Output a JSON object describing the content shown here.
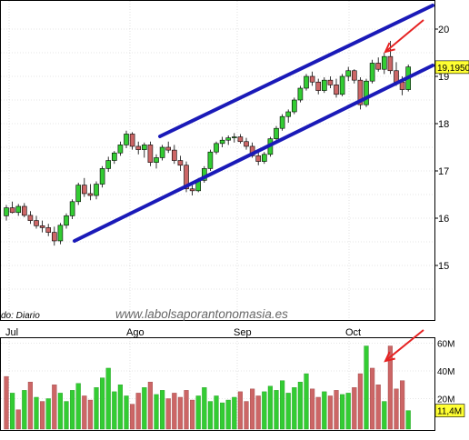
{
  "chart_data": [
    {
      "type": "candlestick",
      "period_label": "do: Diario",
      "watermark": "www.labolsaporantonomasia.es",
      "x_tick_labels": [
        "Jul",
        "Ago",
        "Sep",
        "Oct"
      ],
      "y_tick_labels": [
        "15",
        "16",
        "17",
        "18",
        "19",
        "20"
      ],
      "ylim": [
        14.1,
        20.55
      ],
      "last_price_label": "19,1950",
      "last_price": 19.195,
      "candles": [
        [
          16.05,
          16.28,
          15.95,
          16.22
        ],
        [
          16.22,
          16.35,
          16.1,
          16.12
        ],
        [
          16.12,
          16.3,
          16.05,
          16.25
        ],
        [
          16.25,
          16.32,
          16.02,
          16.06
        ],
        [
          16.06,
          16.15,
          15.88,
          15.95
        ],
        [
          15.95,
          16.05,
          15.78,
          15.84
        ],
        [
          15.84,
          15.95,
          15.7,
          15.8
        ],
        [
          15.8,
          15.88,
          15.62,
          15.7
        ],
        [
          15.7,
          15.82,
          15.42,
          15.52
        ],
        [
          15.52,
          15.9,
          15.45,
          15.85
        ],
        [
          15.85,
          16.1,
          15.78,
          16.05
        ],
        [
          16.05,
          16.4,
          15.98,
          16.35
        ],
        [
          16.35,
          16.75,
          16.28,
          16.7
        ],
        [
          16.7,
          16.85,
          16.45,
          16.52
        ],
        [
          16.52,
          16.72,
          16.38,
          16.48
        ],
        [
          16.48,
          16.78,
          16.4,
          16.72
        ],
        [
          16.72,
          17.1,
          16.65,
          17.05
        ],
        [
          17.05,
          17.3,
          16.98,
          17.22
        ],
        [
          17.22,
          17.42,
          17.15,
          17.38
        ],
        [
          17.38,
          17.62,
          17.32,
          17.55
        ],
        [
          17.55,
          17.85,
          17.48,
          17.78
        ],
        [
          17.78,
          17.82,
          17.45,
          17.52
        ],
        [
          17.52,
          17.62,
          17.35,
          17.45
        ],
        [
          17.45,
          17.6,
          17.28,
          17.55
        ],
        [
          17.55,
          17.62,
          17.1,
          17.18
        ],
        [
          17.18,
          17.35,
          17.05,
          17.28
        ],
        [
          17.28,
          17.55,
          17.22,
          17.5
        ],
        [
          17.5,
          17.62,
          17.38,
          17.44
        ],
        [
          17.44,
          17.55,
          17.15,
          17.22
        ],
        [
          17.22,
          17.32,
          17.0,
          17.12
        ],
        [
          17.12,
          17.2,
          16.55,
          16.62
        ],
        [
          16.62,
          16.7,
          16.48,
          16.58
        ],
        [
          16.58,
          16.85,
          16.55,
          16.8
        ],
        [
          16.8,
          17.1,
          16.75,
          17.05
        ],
        [
          17.05,
          17.45,
          17.0,
          17.4
        ],
        [
          17.4,
          17.62,
          17.35,
          17.58
        ],
        [
          17.58,
          17.72,
          17.5,
          17.65
        ],
        [
          17.65,
          17.75,
          17.55,
          17.7
        ],
        [
          17.7,
          17.8,
          17.6,
          17.72
        ],
        [
          17.72,
          17.78,
          17.58,
          17.62
        ],
        [
          17.62,
          17.7,
          17.45,
          17.52
        ],
        [
          17.52,
          17.6,
          17.28,
          17.32
        ],
        [
          17.32,
          17.4,
          17.12,
          17.2
        ],
        [
          17.2,
          17.4,
          17.15,
          17.35
        ],
        [
          17.35,
          17.72,
          17.3,
          17.68
        ],
        [
          17.68,
          17.95,
          17.62,
          17.9
        ],
        [
          17.9,
          18.2,
          17.85,
          18.15
        ],
        [
          18.15,
          18.3,
          18.02,
          18.25
        ],
        [
          18.25,
          18.55,
          18.2,
          18.5
        ],
        [
          18.5,
          18.8,
          18.45,
          18.75
        ],
        [
          18.75,
          19.05,
          18.7,
          19.0
        ],
        [
          19.0,
          19.1,
          18.8,
          18.88
        ],
        [
          18.88,
          18.95,
          18.62,
          18.7
        ],
        [
          18.7,
          18.98,
          18.65,
          18.92
        ],
        [
          18.92,
          19.0,
          18.75,
          18.82
        ],
        [
          18.82,
          18.95,
          18.55,
          18.62
        ],
        [
          18.62,
          19.05,
          18.58,
          19.0
        ],
        [
          19.0,
          19.2,
          18.9,
          19.12
        ],
        [
          19.12,
          19.15,
          18.85,
          18.92
        ],
        [
          18.92,
          18.98,
          18.3,
          18.4
        ],
        [
          18.4,
          18.95,
          18.35,
          18.9
        ],
        [
          18.9,
          19.35,
          18.85,
          19.28
        ],
        [
          19.28,
          19.4,
          19.1,
          19.15
        ],
        [
          19.15,
          19.5,
          19.05,
          19.42
        ],
        [
          19.42,
          19.75,
          19.05,
          19.12
        ],
        [
          19.12,
          19.3,
          18.8,
          18.88
        ],
        [
          18.88,
          19.0,
          18.6,
          18.72
        ],
        [
          18.72,
          19.25,
          18.68,
          19.2
        ]
      ],
      "volume_axis_labels": [
        "60M",
        "40M",
        "20M"
      ],
      "volume_last_label": "11,4M",
      "volume_max": 64,
      "volume": [
        {
          "v": 36,
          "dir": "dn"
        },
        {
          "v": 24,
          "dir": "up"
        },
        {
          "v": 12,
          "dir": "dn"
        },
        {
          "v": 26,
          "dir": "up"
        },
        {
          "v": 32,
          "dir": "dn"
        },
        {
          "v": 21,
          "dir": "up"
        },
        {
          "v": 18,
          "dir": "dn"
        },
        {
          "v": 20,
          "dir": "up"
        },
        {
          "v": 30,
          "dir": "dn"
        },
        {
          "v": 24,
          "dir": "up"
        },
        {
          "v": 18,
          "dir": "up"
        },
        {
          "v": 26,
          "dir": "up"
        },
        {
          "v": 31,
          "dir": "up"
        },
        {
          "v": 22,
          "dir": "dn"
        },
        {
          "v": 19,
          "dir": "dn"
        },
        {
          "v": 28,
          "dir": "up"
        },
        {
          "v": 35,
          "dir": "up"
        },
        {
          "v": 42,
          "dir": "up"
        },
        {
          "v": 25,
          "dir": "up"
        },
        {
          "v": 30,
          "dir": "up"
        },
        {
          "v": 22,
          "dir": "up"
        },
        {
          "v": 16,
          "dir": "dn"
        },
        {
          "v": 24,
          "dir": "dn"
        },
        {
          "v": 28,
          "dir": "up"
        },
        {
          "v": 32,
          "dir": "dn"
        },
        {
          "v": 23,
          "dir": "up"
        },
        {
          "v": 26,
          "dir": "up"
        },
        {
          "v": 20,
          "dir": "dn"
        },
        {
          "v": 24,
          "dir": "dn"
        },
        {
          "v": 21,
          "dir": "dn"
        },
        {
          "v": 26,
          "dir": "dn"
        },
        {
          "v": 19,
          "dir": "dn"
        },
        {
          "v": 22,
          "dir": "up"
        },
        {
          "v": 28,
          "dir": "up"
        },
        {
          "v": 18,
          "dir": "up"
        },
        {
          "v": 22,
          "dir": "up"
        },
        {
          "v": 17,
          "dir": "up"
        },
        {
          "v": 19,
          "dir": "up"
        },
        {
          "v": 21,
          "dir": "up"
        },
        {
          "v": 25,
          "dir": "dn"
        },
        {
          "v": 18,
          "dir": "dn"
        },
        {
          "v": 27,
          "dir": "dn"
        },
        {
          "v": 22,
          "dir": "dn"
        },
        {
          "v": 25,
          "dir": "up"
        },
        {
          "v": 29,
          "dir": "up"
        },
        {
          "v": 26,
          "dir": "up"
        },
        {
          "v": 33,
          "dir": "up"
        },
        {
          "v": 24,
          "dir": "up"
        },
        {
          "v": 28,
          "dir": "up"
        },
        {
          "v": 32,
          "dir": "up"
        },
        {
          "v": 38,
          "dir": "up"
        },
        {
          "v": 27,
          "dir": "dn"
        },
        {
          "v": 21,
          "dir": "dn"
        },
        {
          "v": 25,
          "dir": "up"
        },
        {
          "v": 22,
          "dir": "dn"
        },
        {
          "v": 26,
          "dir": "dn"
        },
        {
          "v": 23,
          "dir": "up"
        },
        {
          "v": 24,
          "dir": "up"
        },
        {
          "v": 28,
          "dir": "dn"
        },
        {
          "v": 38,
          "dir": "dn"
        },
        {
          "v": 58,
          "dir": "up"
        },
        {
          "v": 42,
          "dir": "dn"
        },
        {
          "v": 30,
          "dir": "dn"
        },
        {
          "v": 18,
          "dir": "up"
        },
        {
          "v": 58,
          "dir": "dn"
        },
        {
          "v": 27,
          "dir": "dn"
        },
        {
          "v": 33,
          "dir": "dn"
        },
        {
          "v": 11.4,
          "dir": "up"
        }
      ]
    }
  ],
  "colors": {
    "up": "#33cc33",
    "down": "#cc6666",
    "channel": "#1a1ab8",
    "arrow": "#e62222",
    "grid": "#cccccc",
    "price_tag": "#ffff33",
    "volume_tag": "#ffff33"
  }
}
